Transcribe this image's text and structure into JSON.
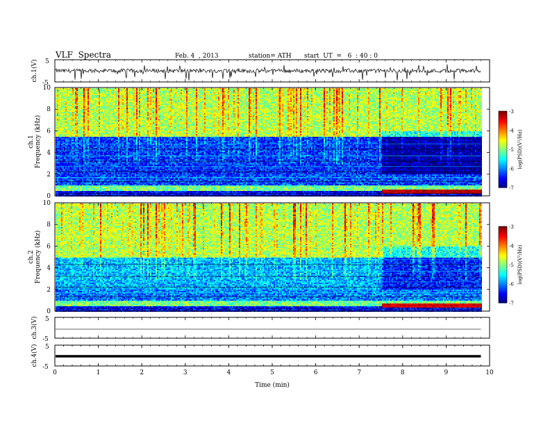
{
  "header": {
    "title": "VLF  Spectra",
    "date": "Feb. 4  , 2013",
    "station": "station= ATH",
    "start": "start  UT  =   6  : 40 : 0"
  },
  "chart_data": [
    {
      "type": "line",
      "title": "",
      "ylabel": "ch.1(V)",
      "ylim": [
        -5,
        5
      ],
      "yticks": [
        "5",
        "-5"
      ],
      "description_of_signal": "noisy waveform near 0 V with impulsive spikes",
      "x": [
        0,
        1,
        2,
        3,
        4,
        5,
        6,
        7,
        8,
        9,
        9.8
      ],
      "y": [
        0,
        0,
        0,
        0,
        0,
        0,
        0,
        0,
        0,
        0,
        0
      ]
    },
    {
      "type": "heatmap",
      "ylabel_top": "ch.1",
      "ylabel": "Frequency  (kHz)",
      "ylim": [
        0,
        10
      ],
      "yticks": [
        "0",
        "2",
        "4",
        "6",
        "8",
        "10"
      ],
      "xlim": [
        0,
        10
      ],
      "data_end_min": 9.8,
      "colorbar": {
        "label": "log(PSD)(V²/Hz)",
        "min": -7,
        "max": -3,
        "ticks": [
          "-3",
          "-4",
          "-5",
          "-6",
          "-7"
        ]
      },
      "bands_logpsd": [
        {
          "f_from": 0.0,
          "f_to": 0.5,
          "value": -6.5
        },
        {
          "f_from": 0.5,
          "f_to": 1.0,
          "value": -5.0
        },
        {
          "f_from": 1.0,
          "f_to": 2.0,
          "value": -6.2
        },
        {
          "f_from": 2.0,
          "f_to": 5.5,
          "value": -6.3
        },
        {
          "f_from": 5.5,
          "f_to": 10.0,
          "value": -4.8
        }
      ],
      "late_change": {
        "t_from": 7.5,
        "f_from": 0.3,
        "f_to": 0.7,
        "value": -3.2
      }
    },
    {
      "type": "heatmap",
      "ylabel_top": "ch.2",
      "ylabel": "Frequency  (kHz)",
      "ylim": [
        0,
        10
      ],
      "yticks": [
        "0",
        "2",
        "4",
        "6",
        "8",
        "10"
      ],
      "xlim": [
        0,
        10
      ],
      "data_end_min": 9.8,
      "colorbar": {
        "label": "log(PSD)(V²/Hz)",
        "min": -7,
        "max": -3,
        "ticks": [
          "-3",
          "-4",
          "-5",
          "-6",
          "-7"
        ]
      },
      "bands_logpsd": [
        {
          "f_from": 0.0,
          "f_to": 0.5,
          "value": -6.5
        },
        {
          "f_from": 0.5,
          "f_to": 1.0,
          "value": -5.0
        },
        {
          "f_from": 1.0,
          "f_to": 2.0,
          "value": -6.0
        },
        {
          "f_from": 2.0,
          "f_to": 5.0,
          "value": -5.8
        },
        {
          "f_from": 5.0,
          "f_to": 10.0,
          "value": -4.8
        }
      ],
      "late_change": {
        "t_from": 7.5,
        "f_from": 0.4,
        "f_to": 0.8,
        "value": -3.3
      }
    },
    {
      "type": "line",
      "ylabel": "ch.3(V)",
      "ylim": [
        -5,
        5
      ],
      "yticks": [
        "5",
        "-5"
      ],
      "x": [
        0,
        9.8
      ],
      "y": [
        0,
        0
      ]
    },
    {
      "type": "line",
      "ylabel": "ch.4(V)",
      "ylim": [
        -5,
        5
      ],
      "yticks": [
        "5",
        "-5"
      ],
      "x": [
        0,
        9.8
      ],
      "y": [
        0,
        0
      ],
      "line_style": "thick"
    }
  ],
  "xaxis": {
    "label": "Time  (min)",
    "ticks": [
      "0",
      "1",
      "2",
      "3",
      "4",
      "5",
      "6",
      "7",
      "8",
      "9",
      "10"
    ],
    "xlim": [
      0,
      10
    ]
  }
}
